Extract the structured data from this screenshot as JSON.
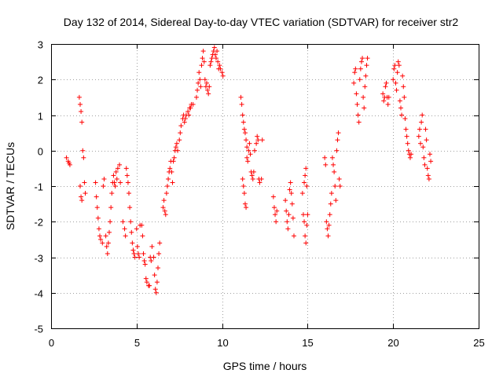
{
  "chart_data": {
    "type": "scatter",
    "title": "Day 132 of 2014, Sidereal Day-to-day VTEC variation (SDTVAR) for receiver str2",
    "xlabel": "GPS time / hours",
    "ylabel": "SDTVAR / TECUs",
    "xlim": [
      0,
      25
    ],
    "ylim": [
      -5,
      3
    ],
    "xticks": [
      0,
      5,
      10,
      15,
      20,
      25
    ],
    "yticks": [
      -5,
      -4,
      -3,
      -2,
      -1,
      0,
      1,
      2,
      3
    ],
    "grid": true,
    "marker": "+",
    "color": "#ff0000",
    "series": [
      {
        "name": "SDTVAR",
        "points": [
          [
            0.9,
            -0.2
          ],
          [
            1.0,
            -0.3
          ],
          [
            1.05,
            -0.35
          ],
          [
            1.1,
            -0.4
          ],
          [
            1.65,
            1.5
          ],
          [
            1.7,
            1.3
          ],
          [
            1.75,
            1.1
          ],
          [
            1.8,
            0.8
          ],
          [
            1.7,
            -1.0
          ],
          [
            1.75,
            -1.3
          ],
          [
            1.8,
            -1.4
          ],
          [
            1.85,
            0.0
          ],
          [
            1.9,
            -0.2
          ],
          [
            1.95,
            -0.9
          ],
          [
            2.0,
            -1.2
          ],
          [
            2.6,
            -0.9
          ],
          [
            2.65,
            -1.3
          ],
          [
            2.7,
            -1.6
          ],
          [
            2.75,
            -1.9
          ],
          [
            2.8,
            -2.2
          ],
          [
            2.85,
            -2.4
          ],
          [
            2.9,
            -2.5
          ],
          [
            3.0,
            -2.6
          ],
          [
            3.05,
            -1.0
          ],
          [
            3.1,
            -0.8
          ],
          [
            3.2,
            -2.4
          ],
          [
            3.25,
            -2.7
          ],
          [
            3.3,
            -2.9
          ],
          [
            3.35,
            -2.6
          ],
          [
            3.4,
            -2.3
          ],
          [
            3.45,
            -2.0
          ],
          [
            3.5,
            -1.6
          ],
          [
            3.55,
            -1.2
          ],
          [
            3.6,
            -0.9
          ],
          [
            3.65,
            -0.7
          ],
          [
            3.7,
            -0.9
          ],
          [
            3.75,
            -1.0
          ],
          [
            3.8,
            -0.6
          ],
          [
            3.85,
            -0.8
          ],
          [
            3.9,
            -0.5
          ],
          [
            4.0,
            -0.4
          ],
          [
            4.05,
            -0.9
          ],
          [
            4.2,
            -2.0
          ],
          [
            4.3,
            -2.2
          ],
          [
            4.35,
            -2.4
          ],
          [
            4.4,
            -0.5
          ],
          [
            4.45,
            -0.7
          ],
          [
            4.5,
            -0.9
          ],
          [
            4.55,
            -1.2
          ],
          [
            4.6,
            -1.6
          ],
          [
            4.65,
            -2.0
          ],
          [
            4.7,
            -2.3
          ],
          [
            4.75,
            -2.6
          ],
          [
            4.8,
            -2.8
          ],
          [
            4.85,
            -2.9
          ],
          [
            4.9,
            -3.0
          ],
          [
            5.0,
            -2.2
          ],
          [
            5.05,
            -2.7
          ],
          [
            5.1,
            -2.9
          ],
          [
            5.15,
            -3.0
          ],
          [
            5.2,
            -2.1
          ],
          [
            5.3,
            -2.1
          ],
          [
            5.35,
            -2.4
          ],
          [
            5.4,
            -2.9
          ],
          [
            5.45,
            -3.1
          ],
          [
            5.5,
            -3.2
          ],
          [
            5.55,
            -3.6
          ],
          [
            5.6,
            -3.7
          ],
          [
            5.7,
            -3.8
          ],
          [
            5.75,
            -3.8
          ],
          [
            5.8,
            -3.0
          ],
          [
            5.85,
            -3.1
          ],
          [
            5.9,
            -2.7
          ],
          [
            6.0,
            -3.0
          ],
          [
            6.05,
            -3.5
          ],
          [
            6.1,
            -3.9
          ],
          [
            6.15,
            -4.0
          ],
          [
            6.2,
            -3.7
          ],
          [
            6.25,
            -3.3
          ],
          [
            6.3,
            -2.9
          ],
          [
            6.35,
            -2.6
          ],
          [
            6.55,
            -1.6
          ],
          [
            6.6,
            -1.4
          ],
          [
            6.65,
            -1.7
          ],
          [
            6.7,
            -1.8
          ],
          [
            6.75,
            -1.2
          ],
          [
            6.8,
            -1.0
          ],
          [
            6.85,
            -0.8
          ],
          [
            6.9,
            -0.6
          ],
          [
            6.95,
            -0.5
          ],
          [
            7.0,
            -0.3
          ],
          [
            7.05,
            -0.6
          ],
          [
            7.1,
            -0.9
          ],
          [
            7.15,
            -0.3
          ],
          [
            7.2,
            -0.2
          ],
          [
            7.25,
            0.0
          ],
          [
            7.3,
            0.1
          ],
          [
            7.35,
            0.2
          ],
          [
            7.4,
            0.0
          ],
          [
            7.5,
            0.3
          ],
          [
            7.55,
            0.5
          ],
          [
            7.6,
            0.7
          ],
          [
            7.7,
            0.9
          ],
          [
            7.75,
            1.0
          ],
          [
            7.8,
            0.8
          ],
          [
            7.85,
            0.9
          ],
          [
            7.9,
            1.0
          ],
          [
            8.0,
            1.1
          ],
          [
            8.05,
            1.0
          ],
          [
            8.1,
            1.2
          ],
          [
            8.15,
            1.2
          ],
          [
            8.2,
            1.3
          ],
          [
            8.3,
            1.3
          ],
          [
            8.5,
            1.5
          ],
          [
            8.55,
            1.7
          ],
          [
            8.6,
            1.9
          ],
          [
            8.65,
            2.2
          ],
          [
            8.7,
            2.0
          ],
          [
            8.75,
            1.8
          ],
          [
            8.8,
            2.4
          ],
          [
            8.85,
            2.6
          ],
          [
            8.9,
            2.8
          ],
          [
            8.95,
            2.5
          ],
          [
            9.0,
            2.0
          ],
          [
            9.05,
            1.8
          ],
          [
            9.1,
            1.9
          ],
          [
            9.15,
            1.7
          ],
          [
            9.2,
            1.6
          ],
          [
            9.25,
            1.8
          ],
          [
            9.3,
            2.4
          ],
          [
            9.35,
            2.5
          ],
          [
            9.4,
            2.6
          ],
          [
            9.45,
            2.7
          ],
          [
            9.5,
            2.8
          ],
          [
            9.55,
            2.9
          ],
          [
            9.6,
            2.7
          ],
          [
            9.65,
            2.6
          ],
          [
            9.7,
            2.8
          ],
          [
            9.75,
            2.5
          ],
          [
            9.8,
            2.3
          ],
          [
            9.85,
            2.4
          ],
          [
            9.9,
            2.3
          ],
          [
            10.0,
            2.2
          ],
          [
            10.05,
            2.1
          ],
          [
            11.1,
            1.5
          ],
          [
            11.15,
            1.3
          ],
          [
            11.2,
            1.0
          ],
          [
            11.25,
            0.8
          ],
          [
            11.3,
            0.6
          ],
          [
            11.35,
            0.5
          ],
          [
            11.4,
            0.3
          ],
          [
            11.45,
            0.1
          ],
          [
            11.2,
            -0.8
          ],
          [
            11.25,
            -1.0
          ],
          [
            11.3,
            -1.2
          ],
          [
            11.35,
            -1.5
          ],
          [
            11.4,
            -1.6
          ],
          [
            11.45,
            -0.2
          ],
          [
            11.5,
            -0.3
          ],
          [
            11.55,
            0.0
          ],
          [
            11.6,
            0.2
          ],
          [
            11.65,
            -0.1
          ],
          [
            11.7,
            -0.6
          ],
          [
            11.75,
            -0.7
          ],
          [
            11.8,
            -0.8
          ],
          [
            11.85,
            -0.6
          ],
          [
            11.9,
            0.0
          ],
          [
            12.0,
            0.2
          ],
          [
            12.05,
            0.4
          ],
          [
            12.1,
            0.3
          ],
          [
            12.15,
            -0.8
          ],
          [
            12.2,
            -0.9
          ],
          [
            12.3,
            -0.8
          ],
          [
            12.35,
            0.3
          ],
          [
            13.0,
            -1.3
          ],
          [
            13.05,
            -1.6
          ],
          [
            13.1,
            -1.8
          ],
          [
            13.15,
            -2.0
          ],
          [
            13.2,
            -1.7
          ],
          [
            13.7,
            -1.4
          ],
          [
            13.75,
            -1.7
          ],
          [
            13.8,
            -2.0
          ],
          [
            13.85,
            -2.2
          ],
          [
            13.9,
            -1.8
          ],
          [
            13.95,
            -1.1
          ],
          [
            14.0,
            -0.9
          ],
          [
            14.05,
            -1.2
          ],
          [
            14.1,
            -1.5
          ],
          [
            14.15,
            -1.9
          ],
          [
            14.2,
            -2.4
          ],
          [
            14.7,
            -1.2
          ],
          [
            14.75,
            -1.8
          ],
          [
            14.8,
            -2.0
          ],
          [
            14.85,
            -2.4
          ],
          [
            14.9,
            -2.6
          ],
          [
            14.95,
            -2.1
          ],
          [
            15.0,
            -1.8
          ],
          [
            14.8,
            -0.9
          ],
          [
            14.85,
            -0.7
          ],
          [
            14.9,
            -0.5
          ],
          [
            14.95,
            -1.0
          ],
          [
            16.0,
            -0.2
          ],
          [
            16.05,
            -0.4
          ],
          [
            16.1,
            -2.0
          ],
          [
            16.15,
            -2.2
          ],
          [
            16.2,
            -2.4
          ],
          [
            16.25,
            -2.1
          ],
          [
            16.3,
            -1.8
          ],
          [
            16.35,
            -1.5
          ],
          [
            16.4,
            -1.2
          ],
          [
            16.45,
            -0.2
          ],
          [
            16.5,
            -0.4
          ],
          [
            16.55,
            -0.6
          ],
          [
            16.6,
            -1.0
          ],
          [
            16.65,
            -1.4
          ],
          [
            16.7,
            0.0
          ],
          [
            16.75,
            0.3
          ],
          [
            16.8,
            0.5
          ],
          [
            16.85,
            -0.8
          ],
          [
            16.9,
            -1.0
          ],
          [
            17.7,
            1.9
          ],
          [
            17.75,
            2.2
          ],
          [
            17.8,
            2.3
          ],
          [
            17.85,
            1.6
          ],
          [
            17.9,
            1.3
          ],
          [
            17.95,
            1.0
          ],
          [
            18.0,
            0.8
          ],
          [
            18.05,
            2.0
          ],
          [
            18.1,
            2.3
          ],
          [
            18.15,
            2.5
          ],
          [
            18.2,
            2.6
          ],
          [
            18.25,
            1.5
          ],
          [
            18.3,
            1.2
          ],
          [
            18.35,
            1.8
          ],
          [
            18.4,
            2.1
          ],
          [
            18.45,
            2.4
          ],
          [
            18.5,
            2.6
          ],
          [
            19.4,
            1.6
          ],
          [
            19.45,
            1.4
          ],
          [
            19.5,
            1.5
          ],
          [
            19.55,
            1.8
          ],
          [
            19.6,
            1.9
          ],
          [
            19.65,
            1.5
          ],
          [
            19.7,
            1.3
          ],
          [
            19.75,
            1.5
          ],
          [
            20.0,
            2.0
          ],
          [
            20.05,
            2.3
          ],
          [
            20.1,
            2.4
          ],
          [
            20.15,
            1.9
          ],
          [
            20.2,
            1.7
          ],
          [
            20.25,
            2.2
          ],
          [
            20.3,
            2.5
          ],
          [
            20.35,
            2.4
          ],
          [
            20.4,
            1.4
          ],
          [
            20.45,
            1.2
          ],
          [
            20.5,
            1.0
          ],
          [
            20.55,
            2.1
          ],
          [
            20.6,
            1.8
          ],
          [
            20.65,
            1.5
          ],
          [
            20.7,
            0.9
          ],
          [
            20.75,
            0.6
          ],
          [
            20.8,
            0.4
          ],
          [
            20.85,
            0.2
          ],
          [
            20.9,
            0.0
          ],
          [
            20.95,
            -0.1
          ],
          [
            21.0,
            -0.2
          ],
          [
            21.05,
            -0.1
          ],
          [
            21.5,
            0.4
          ],
          [
            21.55,
            0.6
          ],
          [
            21.6,
            0.2
          ],
          [
            21.65,
            0.8
          ],
          [
            21.7,
            1.0
          ],
          [
            21.75,
            0.1
          ],
          [
            21.8,
            -0.2
          ],
          [
            21.85,
            -0.4
          ],
          [
            21.9,
            0.6
          ],
          [
            21.95,
            0.3
          ],
          [
            22.0,
            -0.5
          ],
          [
            22.05,
            -0.7
          ],
          [
            22.1,
            -0.8
          ],
          [
            22.15,
            -0.1
          ],
          [
            22.2,
            -0.3
          ]
        ]
      }
    ]
  }
}
